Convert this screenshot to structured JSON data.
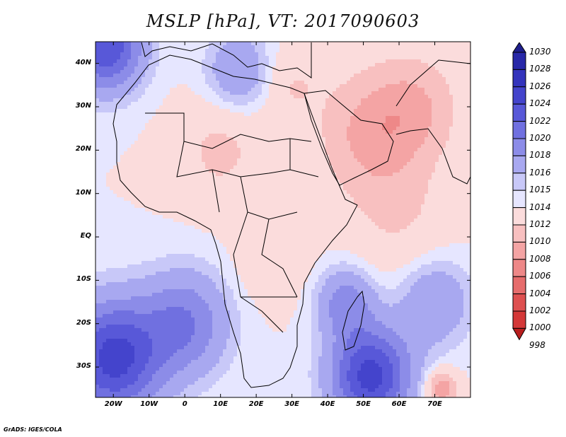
{
  "title": "MSLP [hPa], VT: 2017090603",
  "credit": "GrADS: IGES/COLA",
  "map": {
    "lon_range": [
      -25,
      80
    ],
    "lat_range": [
      -37,
      45
    ],
    "lat_ticks": [
      {
        "value": 40,
        "label": "40N"
      },
      {
        "value": 30,
        "label": "30N"
      },
      {
        "value": 20,
        "label": "20N"
      },
      {
        "value": 10,
        "label": "10N"
      },
      {
        "value": 0,
        "label": "EQ"
      },
      {
        "value": -10,
        "label": "10S"
      },
      {
        "value": -20,
        "label": "20S"
      },
      {
        "value": -30,
        "label": "30S"
      }
    ],
    "lon_ticks": [
      {
        "value": -20,
        "label": "20W"
      },
      {
        "value": -10,
        "label": "10W"
      },
      {
        "value": 0,
        "label": "0"
      },
      {
        "value": 10,
        "label": "10E"
      },
      {
        "value": 20,
        "label": "20E"
      },
      {
        "value": 30,
        "label": "30E"
      },
      {
        "value": 40,
        "label": "40E"
      },
      {
        "value": 50,
        "label": "50E"
      },
      {
        "value": 60,
        "label": "60E"
      },
      {
        "value": 70,
        "label": "70E"
      }
    ]
  },
  "colorbar": {
    "levels": [
      "1030",
      "1028",
      "1026",
      "1024",
      "1022",
      "1020",
      "1018",
      "1016",
      "1015",
      "1014",
      "1012",
      "1010",
      "1008",
      "1006",
      "1004",
      "1002",
      "1000",
      "998"
    ],
    "colors": [
      "#1e1e8c",
      "#2828a8",
      "#3434bc",
      "#4444cc",
      "#5858d8",
      "#7070e0",
      "#8c8ce8",
      "#a8a8f0",
      "#c8c8f8",
      "#e6e6ff",
      "#fbdcdc",
      "#f8c0c0",
      "#f4a4a4",
      "#ee8888",
      "#e66c6c",
      "#de5050",
      "#d43838",
      "#b81e1e"
    ]
  },
  "pressure_field": {
    "base_hpa": 1014,
    "features": [
      {
        "lon": 52,
        "lat": 24,
        "amp": -4.5,
        "radius": 14
      },
      {
        "lon": 65,
        "lat": 30,
        "amp": -3.5,
        "radius": 12
      },
      {
        "lon": 10,
        "lat": 20,
        "amp": -2.5,
        "radius": 12
      },
      {
        "lon": 30,
        "lat": 35,
        "amp": -2.0,
        "radius": 8
      },
      {
        "lon": 60,
        "lat": 5,
        "amp": -2.0,
        "radius": 14
      },
      {
        "lon": 25,
        "lat": -5,
        "amp": -1.5,
        "radius": 10
      },
      {
        "lon": 72,
        "lat": -35,
        "amp": -6.0,
        "radius": 4
      },
      {
        "lon": -22,
        "lat": 44,
        "amp": 10.0,
        "radius": 10
      },
      {
        "lon": 15,
        "lat": 38,
        "amp": 4.0,
        "radius": 9
      },
      {
        "lon": -20,
        "lat": -28,
        "amp": 11.0,
        "radius": 13
      },
      {
        "lon": 0,
        "lat": -20,
        "amp": 6.0,
        "radius": 12
      },
      {
        "lon": 52,
        "lat": -32,
        "amp": 11.0,
        "radius": 11
      },
      {
        "lon": 45,
        "lat": -15,
        "amp": 5.0,
        "radius": 8
      },
      {
        "lon": 70,
        "lat": -15,
        "amp": 4.0,
        "radius": 10
      }
    ]
  }
}
